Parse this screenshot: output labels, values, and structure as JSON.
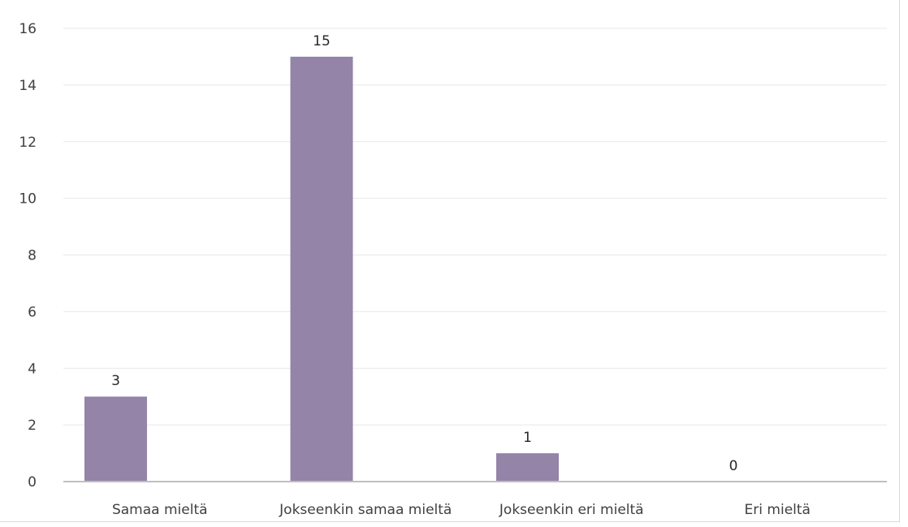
{
  "chart_data": {
    "type": "bar",
    "categories": [
      "Samaa mieltä",
      "Jokseenkin samaa mieltä",
      "Jokseenkin eri mieltä",
      "Eri mieltä"
    ],
    "values": [
      3,
      15,
      1,
      0
    ],
    "data_labels": [
      "3",
      "15",
      "1",
      "0"
    ],
    "title": "",
    "xlabel": "",
    "ylabel": "",
    "ylim": [
      0,
      16
    ],
    "yticks": [
      0,
      2,
      4,
      6,
      8,
      10,
      12,
      14,
      16
    ],
    "grid": "horizontal",
    "legend": "none",
    "colors": {
      "bar": "#9484a8",
      "grid": "#e8e8e8",
      "axis": "#bfbfbf",
      "text": "#404040"
    }
  }
}
